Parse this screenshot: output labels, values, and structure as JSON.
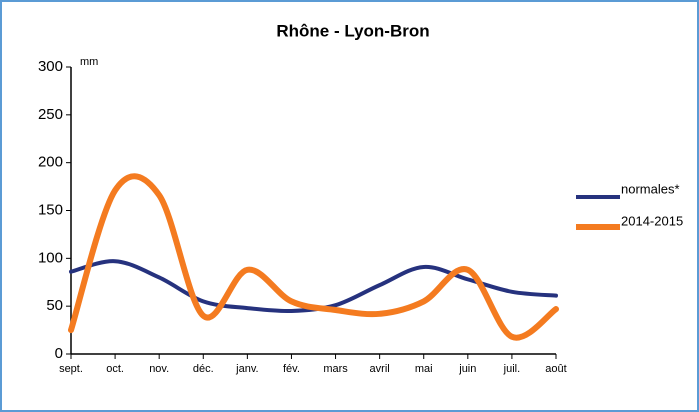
{
  "chart_data": {
    "type": "line",
    "title": "Rhône - Lyon-Bron",
    "y_unit": "mm",
    "categories": [
      "sept.",
      "oct.",
      "nov.",
      "déc.",
      "janv.",
      "fév.",
      "mars",
      "avril",
      "mai",
      "juin",
      "juil.",
      "août"
    ],
    "series": [
      {
        "name": "normales*",
        "color": "#26327e",
        "values": [
          86,
          97,
          80,
          55,
          48,
          45,
          51,
          72,
          91,
          78,
          65,
          61
        ]
      },
      {
        "name": "2014-2015",
        "color": "#f47b20",
        "values": [
          25,
          171,
          166,
          40,
          88,
          55,
          46,
          42,
          55,
          88,
          18,
          47
        ]
      }
    ],
    "ylim": [
      0,
      300
    ],
    "yticks": [
      0,
      50,
      100,
      150,
      200,
      250,
      300
    ],
    "grid": false,
    "legend": "right"
  }
}
